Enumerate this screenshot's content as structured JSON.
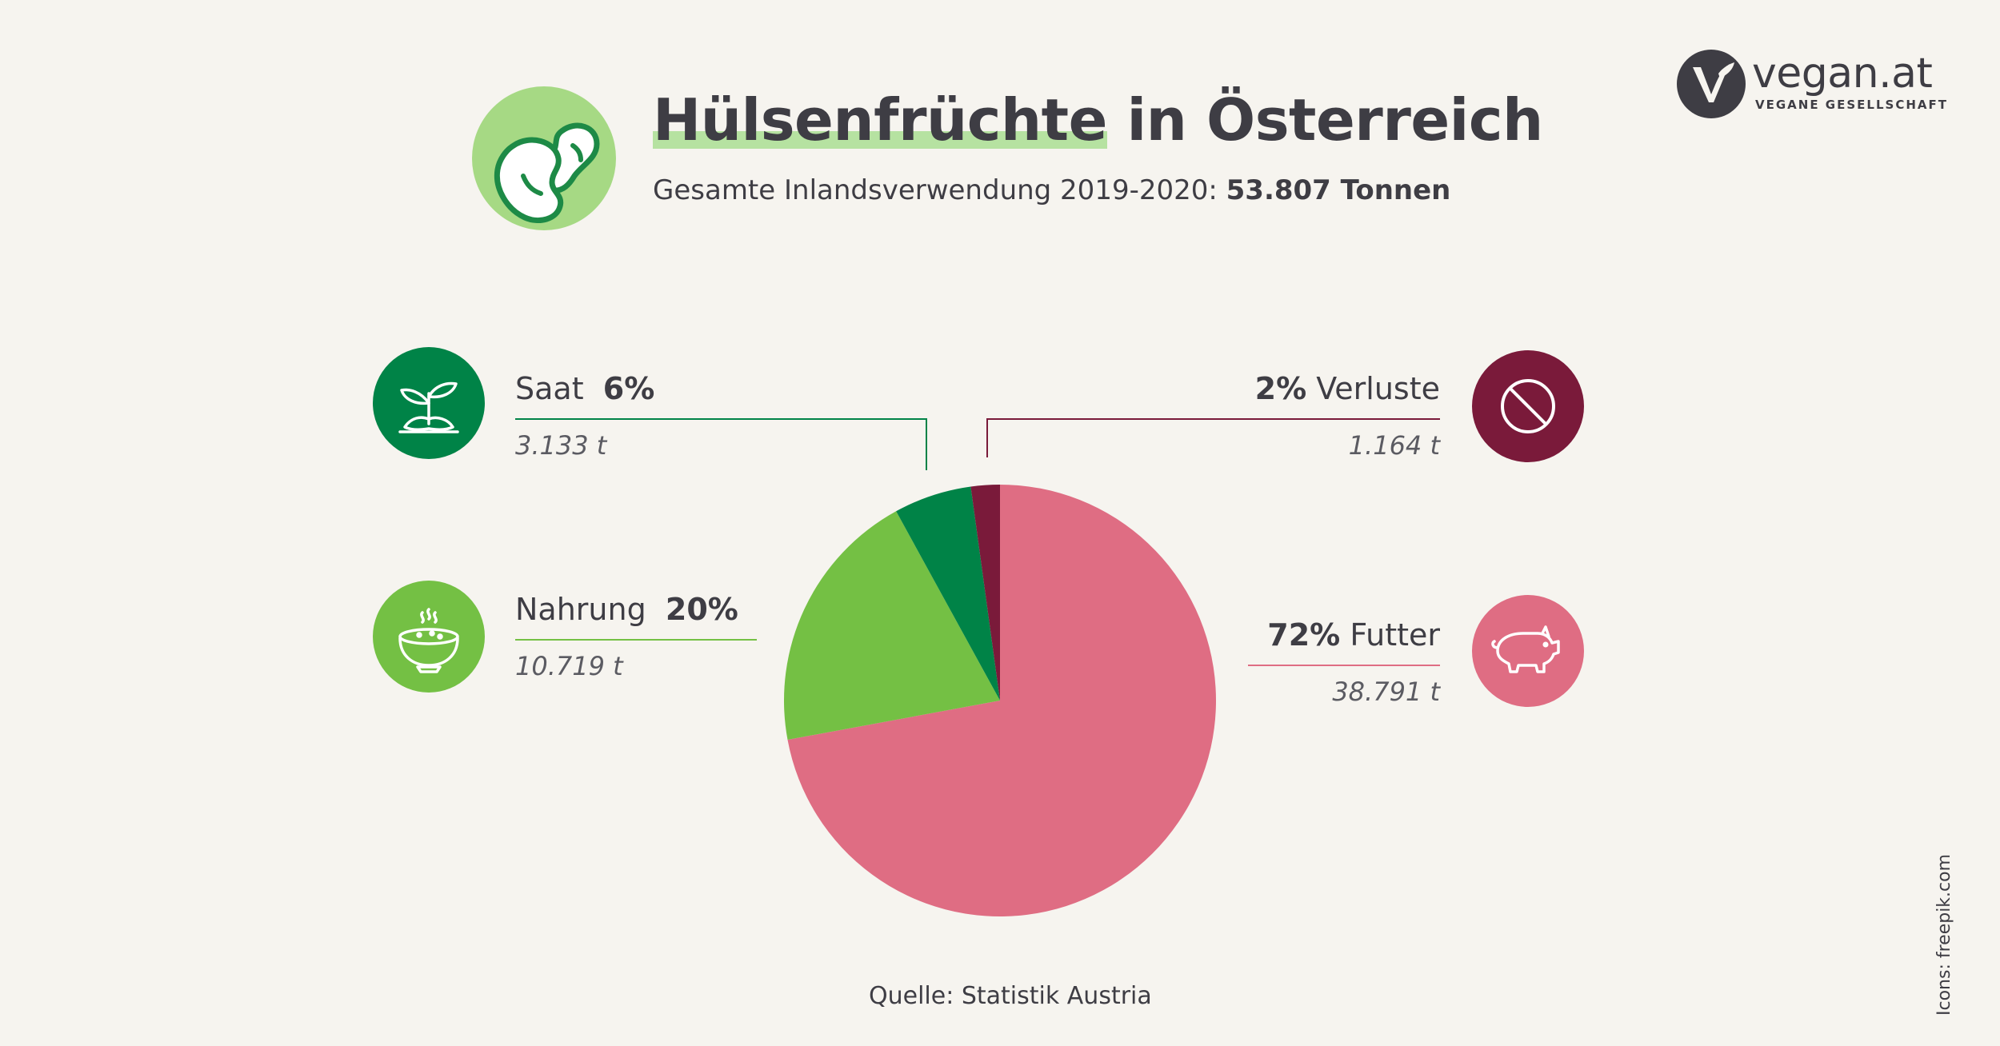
{
  "header": {
    "title_highlight": "Hülsenfrüchte",
    "title_rest": " in Österreich",
    "subtitle_prefix": "Gesamte Inlandsverwendung 2019-2020: ",
    "subtitle_total": "53.807 Tonnen"
  },
  "logo": {
    "name": "vegan.at",
    "tagline": "VEGANE GESELLSCHAFT",
    "icon": "vegan-v-leaf-logo"
  },
  "categories": {
    "saat": {
      "name": "Saat",
      "percent": "6%",
      "tonnes": "3.133 t",
      "icon": "seedling-icon",
      "color": "#008347"
    },
    "verluste": {
      "name": "Verluste",
      "percent": "2%",
      "tonnes": "1.164 t",
      "icon": "prohibited-icon",
      "color": "#7a1a3a"
    },
    "nahrung": {
      "name": "Nahrung",
      "percent": "20%",
      "tonnes": "10.719 t",
      "icon": "soup-bowl-icon",
      "color": "#74c044"
    },
    "futter": {
      "name": "Futter",
      "percent": "72%",
      "tonnes": "38.791 t",
      "icon": "pig-icon",
      "color": "#df6d83"
    }
  },
  "chart_data": {
    "type": "pie",
    "title": "Hülsenfrüchte in Österreich",
    "subtitle": "Gesamte Inlandsverwendung 2019-2020: 53.807 Tonnen",
    "unit": "t",
    "slices": [
      {
        "label": "Futter",
        "value": 38791,
        "percent": 72,
        "color": "#df6d83"
      },
      {
        "label": "Nahrung",
        "value": 10719,
        "percent": 20,
        "color": "#74c044"
      },
      {
        "label": "Saat",
        "value": 3133,
        "percent": 6,
        "color": "#008347"
      },
      {
        "label": "Verluste",
        "value": 1164,
        "percent": 2,
        "color": "#7a1a3a"
      }
    ]
  },
  "footer": {
    "source": "Quelle: Statistik Austria",
    "credit": "Icons: freepik.com"
  },
  "colors": {
    "background": "#f6f4ef",
    "text": "#3e3d44",
    "title_highlight": "#b6e2a1",
    "bean_circle": "#a6d984"
  }
}
